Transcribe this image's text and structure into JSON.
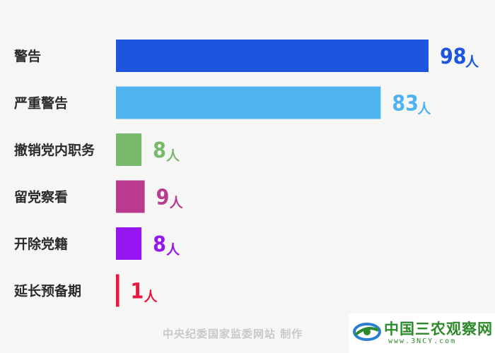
{
  "chart_data": {
    "type": "bar",
    "orientation": "horizontal",
    "categories": [
      "警告",
      "严重警告",
      "撤销党内职务",
      "留党察看",
      "开除党籍",
      "延长预备期"
    ],
    "values": [
      98,
      83,
      8,
      9,
      8,
      1
    ],
    "value_labels": [
      "98",
      "83",
      "8",
      "9",
      "8",
      "1"
    ],
    "unit": "人",
    "colors": [
      "#1d55e0",
      "#4fb3f0",
      "#77b86a",
      "#b93a8f",
      "#9516f0",
      "#e8173f"
    ],
    "xlim": [
      0,
      98
    ],
    "grid": false,
    "legend": "none"
  },
  "footer": {
    "credit": "中央纪委国家监委网站 制作"
  },
  "watermark": {
    "name": "中国三农观察网",
    "url": "www.3NCY.com",
    "colors": {
      "brand": "#2d8a2a",
      "swoosh": "#2a7fd0"
    }
  }
}
